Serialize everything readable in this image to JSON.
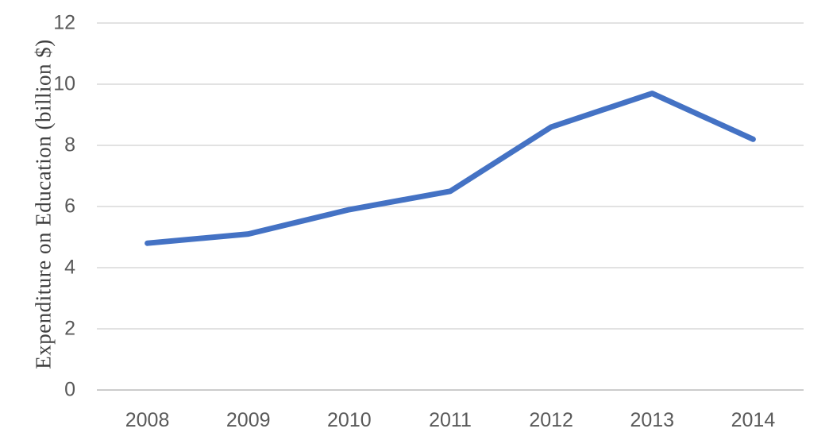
{
  "chart_data": {
    "type": "line",
    "categories": [
      "2008",
      "2009",
      "2010",
      "2011",
      "2012",
      "2013",
      "2014"
    ],
    "series": [
      {
        "name": "Expenditure on Education",
        "values": [
          4.8,
          5.1,
          5.9,
          6.5,
          8.6,
          9.7,
          8.2
        ]
      }
    ],
    "title": "",
    "xlabel": "",
    "ylabel": "Expenditure on Education (billion $)",
    "ylim": [
      0,
      12
    ],
    "yticks": [
      0,
      2,
      4,
      6,
      8,
      10,
      12
    ],
    "grid": "horizontal-only",
    "legend_position": "none",
    "colors": {
      "line": "#4472C4",
      "gridline": "#D9D9D9",
      "baseline": "#CCCCCC",
      "tick_label": "#595959",
      "axis_title": "#404040",
      "background": "#FFFFFF"
    }
  }
}
